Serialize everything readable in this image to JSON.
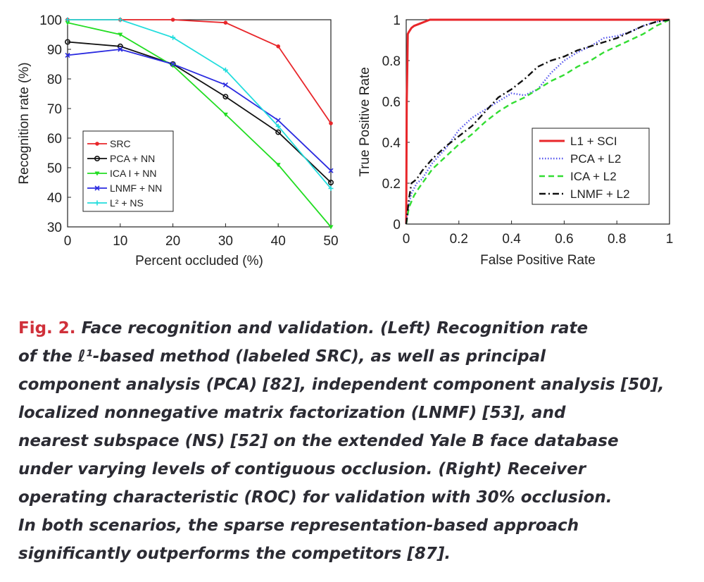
{
  "chart_data": [
    {
      "type": "line",
      "title": "",
      "xlabel": "Percent occluded (%)",
      "ylabel": "Recognition rate (%)",
      "xlim": [
        0,
        50
      ],
      "ylim": [
        30,
        100
      ],
      "x": [
        0,
        10,
        20,
        30,
        40,
        50
      ],
      "xticks": [
        "0",
        "10",
        "20",
        "30",
        "40",
        "50"
      ],
      "yticks": [
        "30",
        "40",
        "50",
        "60",
        "70",
        "80",
        "90",
        "100"
      ],
      "legend_position": "bottom-left",
      "series": [
        {
          "name": "SRC",
          "color": "#e8262a",
          "marker": "dot",
          "values": [
            100,
            100,
            100,
            99,
            91,
            65
          ]
        },
        {
          "name": "PCA + NN",
          "color": "#111111",
          "marker": "circle",
          "values": [
            92.5,
            91,
            85,
            74,
            62,
            45
          ]
        },
        {
          "name": "ICA I + NN",
          "color": "#22dd22",
          "marker": "triangle",
          "values": [
            99,
            95,
            84.5,
            68,
            51,
            30
          ]
        },
        {
          "name": "LNMF + NN",
          "color": "#2a2ae0",
          "marker": "x",
          "values": [
            88,
            90,
            85,
            78,
            66,
            49
          ]
        },
        {
          "name": "L² + NS",
          "color": "#22dddd",
          "marker": "plus",
          "values": [
            100,
            100,
            94,
            83,
            64,
            43
          ]
        }
      ]
    },
    {
      "type": "line",
      "title": "",
      "xlabel": "False Positive Rate",
      "ylabel": "True Positive Rate",
      "xlim": [
        0,
        1
      ],
      "ylim": [
        0,
        1
      ],
      "xticks": [
        "0",
        "0.2",
        "0.4",
        "0.6",
        "0.8",
        "1"
      ],
      "yticks": [
        "0",
        "0.2",
        "0.4",
        "0.6",
        "0.8",
        "1"
      ],
      "legend_position": "bottom-right",
      "series": [
        {
          "name": "L1 + SCI",
          "color": "#e8262a",
          "dash": "solid",
          "x": [
            0,
            0.002,
            0.004,
            0.006,
            0.01,
            0.02,
            0.03,
            0.05,
            0.07,
            0.09,
            0.1,
            1
          ],
          "y": [
            0,
            0.6,
            0.75,
            0.93,
            0.94,
            0.96,
            0.97,
            0.98,
            0.99,
            1,
            1,
            1
          ]
        },
        {
          "name": "PCA + L2",
          "color": "#5555ee",
          "dash": "dotted",
          "x": [
            0,
            0.01,
            0.02,
            0.04,
            0.06,
            0.1,
            0.15,
            0.2,
            0.25,
            0.3,
            0.35,
            0.4,
            0.45,
            0.5,
            0.55,
            0.6,
            0.65,
            0.7,
            0.75,
            0.8,
            0.85,
            0.9,
            0.95,
            1
          ],
          "y": [
            0,
            0.1,
            0.15,
            0.2,
            0.22,
            0.3,
            0.37,
            0.46,
            0.52,
            0.56,
            0.6,
            0.64,
            0.63,
            0.66,
            0.74,
            0.8,
            0.84,
            0.87,
            0.91,
            0.92,
            0.94,
            0.97,
            0.99,
            1
          ]
        },
        {
          "name": "ICA + L2",
          "color": "#33dd33",
          "dash": "dashed",
          "x": [
            0,
            0.01,
            0.03,
            0.05,
            0.1,
            0.15,
            0.2,
            0.25,
            0.3,
            0.35,
            0.4,
            0.45,
            0.5,
            0.55,
            0.6,
            0.65,
            0.7,
            0.75,
            0.8,
            0.85,
            0.9,
            0.95,
            1
          ],
          "y": [
            0,
            0.08,
            0.14,
            0.18,
            0.27,
            0.33,
            0.39,
            0.44,
            0.5,
            0.55,
            0.59,
            0.62,
            0.66,
            0.7,
            0.73,
            0.77,
            0.8,
            0.84,
            0.87,
            0.9,
            0.93,
            0.97,
            1
          ]
        },
        {
          "name": "LNMF + L2",
          "color": "#111111",
          "dash": "dashdot",
          "x": [
            0,
            0.01,
            0.02,
            0.04,
            0.06,
            0.1,
            0.15,
            0.2,
            0.25,
            0.3,
            0.35,
            0.4,
            0.45,
            0.5,
            0.55,
            0.6,
            0.65,
            0.7,
            0.75,
            0.8,
            0.85,
            0.9,
            0.95,
            1
          ],
          "y": [
            0,
            0.12,
            0.2,
            0.22,
            0.26,
            0.32,
            0.38,
            0.43,
            0.48,
            0.55,
            0.62,
            0.66,
            0.71,
            0.77,
            0.8,
            0.82,
            0.85,
            0.87,
            0.89,
            0.91,
            0.94,
            0.97,
            0.99,
            1
          ]
        }
      ]
    }
  ],
  "caption": {
    "fig_label": "Fig. 2.",
    "lines": [
      "Face recognition and validation. (Left) Recognition rate",
      "of the ℓ¹-based method (labeled SRC), as well as principal",
      "component analysis (PCA) [82], independent component analysis [50],",
      "localized nonnegative matrix factorization (LNMF) [53], and",
      "nearest subspace (NS) [52] on the extended Yale B face database",
      "under varying levels of contiguous occlusion. (Right) Receiver",
      "operating characteristic (ROC) for validation with 30% occlusion.",
      "In both scenarios, the sparse representation-based approach",
      "significantly outperforms the competitors [87]."
    ]
  }
}
